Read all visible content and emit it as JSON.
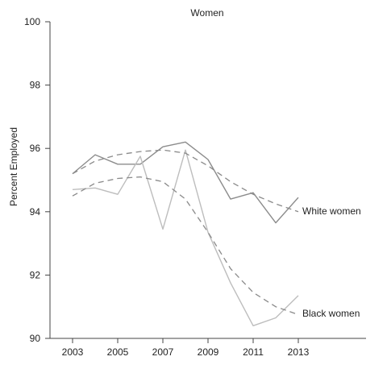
{
  "chart_data": {
    "type": "line",
    "title": "Women",
    "xlabel": "",
    "ylabel": "Percent Employed",
    "xlim": [
      2002,
      2016
    ],
    "ylim": [
      90,
      100
    ],
    "x_ticks": [
      "2003",
      "2005",
      "2007",
      "2009",
      "2011",
      "2013"
    ],
    "y_ticks": [
      "90",
      "92",
      "94",
      "96",
      "98",
      "100"
    ],
    "grid": false,
    "colors": {
      "white_series": "#8c8c8c",
      "black_series": "#bdbdbd",
      "trend": "#8a8a8a",
      "axis": "#444444"
    },
    "series": [
      {
        "name": "White women",
        "style": "solid",
        "x": [
          2003,
          2004,
          2005,
          2006,
          2007,
          2008,
          2009,
          2010,
          2011,
          2012,
          2013
        ],
        "y": [
          95.2,
          95.8,
          95.5,
          95.5,
          96.05,
          96.2,
          95.65,
          94.4,
          94.6,
          93.65,
          94.45
        ]
      },
      {
        "name": "Black women",
        "style": "solid",
        "x": [
          2003,
          2004,
          2005,
          2006,
          2007,
          2008,
          2009,
          2010,
          2011,
          2012,
          2013
        ],
        "y": [
          94.7,
          94.75,
          94.55,
          95.75,
          93.45,
          95.95,
          93.35,
          91.75,
          90.4,
          90.65,
          91.35
        ]
      },
      {
        "name": "",
        "style": "dashed",
        "x": [
          2003,
          2004,
          2005,
          2006,
          2007,
          2008,
          2009,
          2010,
          2011,
          2012,
          2013
        ],
        "y": [
          95.2,
          95.6,
          95.8,
          95.9,
          95.95,
          95.85,
          95.45,
          94.95,
          94.55,
          94.25,
          94.0
        ]
      },
      {
        "name": "",
        "style": "dashed",
        "x": [
          2003,
          2004,
          2005,
          2006,
          2007,
          2008,
          2009,
          2010,
          2011,
          2012,
          2013
        ],
        "y": [
          94.5,
          94.9,
          95.05,
          95.1,
          94.95,
          94.4,
          93.35,
          92.2,
          91.45,
          91.0,
          90.75
        ]
      }
    ],
    "annotations": [
      {
        "text": "White women",
        "series": 0
      },
      {
        "text": "Black women",
        "series": 1
      }
    ]
  }
}
